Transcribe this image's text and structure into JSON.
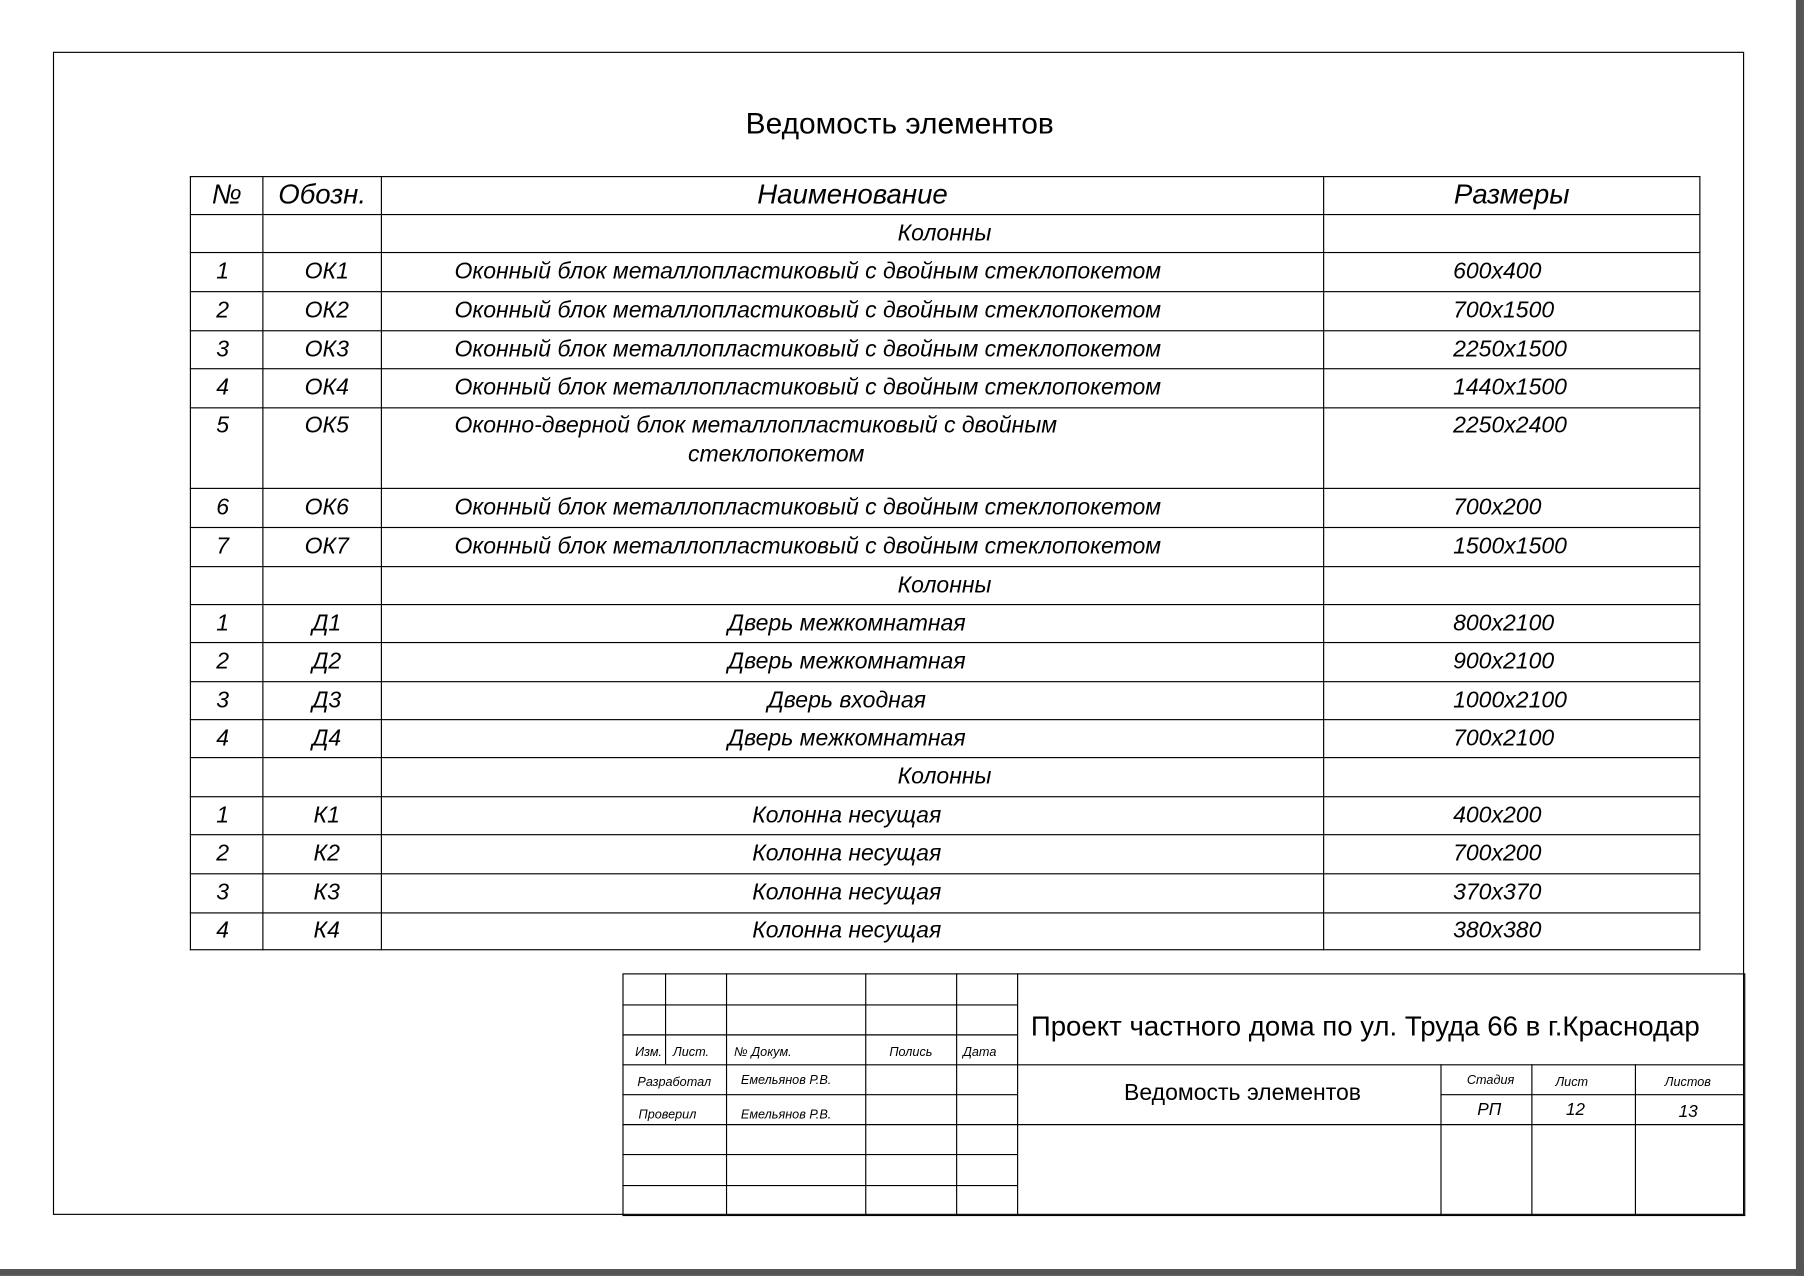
{
  "document": {
    "title": "Ведомость элементов",
    "table": {
      "headers": {
        "no": "№",
        "code": "Обозн.",
        "name": "Наименование",
        "size": "Размеры"
      },
      "rows": [
        {
          "type": "section",
          "name": "Колонны"
        },
        {
          "no": "1",
          "code": "ОК1",
          "name": "Оконный блок металлопластиковый с двойным стеклопокетом",
          "size": "600x400"
        },
        {
          "no": "2",
          "code": "ОК2",
          "name": "Оконный блок металлопластиковый с двойным стеклопокетом",
          "size": "700x1500"
        },
        {
          "no": "3",
          "code": "ОК3",
          "name": "Оконный блок металлопластиковый с двойным стеклопокетом",
          "size": "2250x1500"
        },
        {
          "no": "4",
          "code": "ОК4",
          "name": "Оконный блок металлопластиковый с двойным стеклопокетом",
          "size": "1440x1500"
        },
        {
          "no": "5",
          "code": "ОК5",
          "name": "Оконно-дверной блок металлопластиковый с двойным",
          "name2": "стеклопокетом",
          "size": "2250x2400"
        },
        {
          "no": "6",
          "code": "ОК6",
          "name": "Оконный блок металлопластиковый с двойным стеклопокетом",
          "size": "700x200"
        },
        {
          "no": "7",
          "code": "ОК7",
          "name": "Оконный блок металлопластиковый с двойным стеклопокетом",
          "size": "1500x1500"
        },
        {
          "type": "section",
          "name": "Колонны"
        },
        {
          "no": "1",
          "code": "Д1",
          "name": "Дверь межкомнатная",
          "size": "800x2100"
        },
        {
          "no": "2",
          "code": "Д2",
          "name": "Дверь межкомнатная",
          "size": "900x2100"
        },
        {
          "no": "3",
          "code": "Д3",
          "name": "Дверь входная",
          "size": "1000x2100"
        },
        {
          "no": "4",
          "code": "Д4",
          "name": "Дверь межкомнатная",
          "size": "700x2100"
        },
        {
          "type": "section",
          "name": "Колонны"
        },
        {
          "no": "1",
          "code": "К1",
          "name": "Колонна несущая",
          "size": "400x200"
        },
        {
          "no": "2",
          "code": "К2",
          "name": "Колонна несущая",
          "size": "700x200"
        },
        {
          "no": "3",
          "code": "К3",
          "name": "Колонна несущая",
          "size": "370x370"
        },
        {
          "no": "4",
          "code": "К4",
          "name": "Колонна несущая",
          "size": "380x380"
        }
      ]
    }
  },
  "title_block": {
    "project": "Проект частного дома по ул. Труда 66 в г.Краснодар",
    "sheet_title": "Ведомость элементов",
    "labels": {
      "izm": "Изм.",
      "list": "Лист.",
      "doc_no": "№ Докум.",
      "signature": "Полись",
      "date": "Дата",
      "stage": "Стадия",
      "sheet": "Лист",
      "sheets": "Листов"
    },
    "developed_label": "Разработал",
    "developed_by": "Емельянов Р.В.",
    "checked_label": "Проверил",
    "checked_by": "Емельянов Р.В.",
    "stage": "РП",
    "sheet": "12",
    "sheets": "13"
  }
}
